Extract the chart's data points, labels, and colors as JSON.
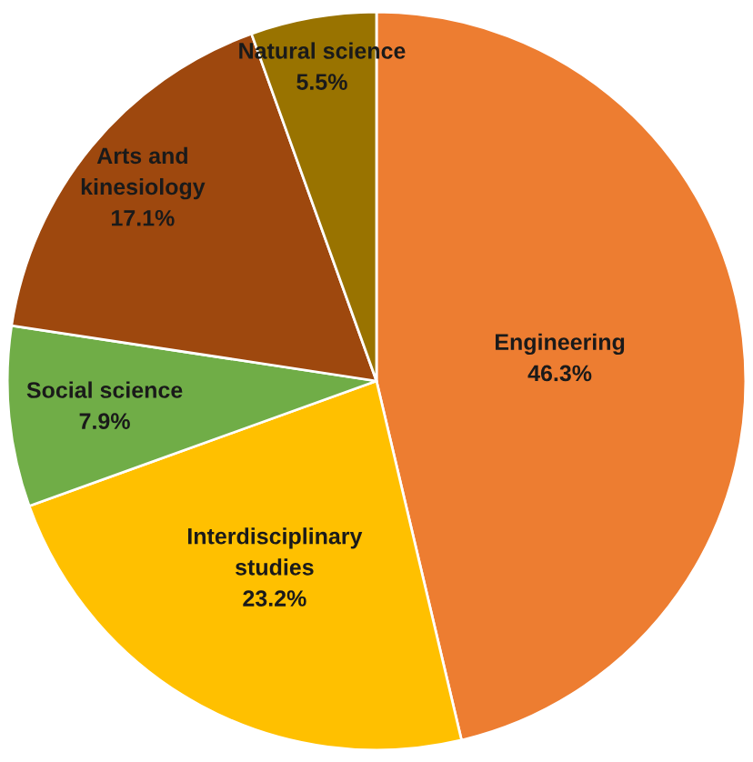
{
  "chart_data": {
    "type": "pie",
    "categories": [
      "Engineering",
      "Interdisciplinary\nstudies",
      "Social science",
      "Arts and\nkinesiology",
      "Natural science"
    ],
    "values": [
      46.3,
      23.2,
      7.9,
      17.1,
      5.5
    ],
    "colors": [
      "#ed7d31",
      "#ffc000",
      "#70ad47",
      "#9e480e",
      "#997300"
    ],
    "value_labels": [
      "46.3%",
      "23.2%",
      "7.9%",
      "17.1%",
      "5.5%"
    ]
  }
}
